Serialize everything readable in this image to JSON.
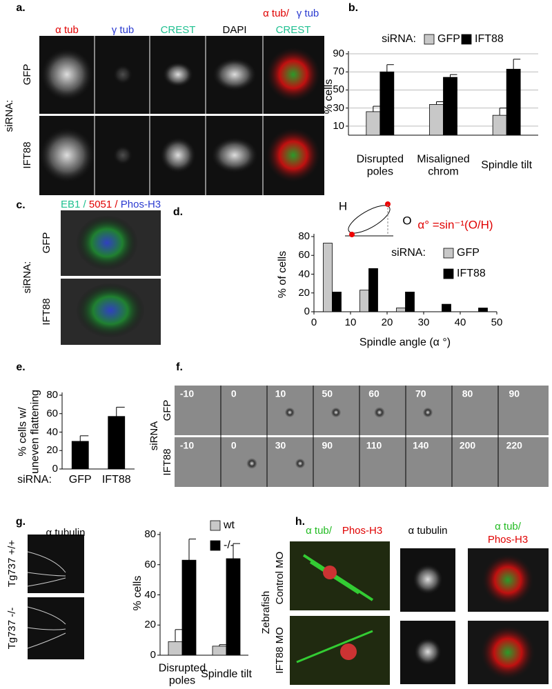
{
  "panel_labels": [
    "a.",
    "b.",
    "c.",
    "d.",
    "e.",
    "f.",
    "g.",
    "h."
  ],
  "panel_a": {
    "group": "siRNA:",
    "rows": [
      "GFP",
      "IFT88"
    ],
    "columns": [
      "α tub",
      "γ tub",
      "CREST",
      "DAPI"
    ],
    "merge": [
      "α tub/",
      "γ tub",
      "CREST"
    ]
  },
  "panel_c": {
    "header": [
      "EB1",
      "/",
      "5051",
      "/",
      "Phos-H3"
    ],
    "group": "siRNA:",
    "rows": [
      "GFP",
      "IFT88"
    ]
  },
  "panel_f": {
    "group": "siRNA",
    "rows": [
      "GFP",
      "IFT88"
    ],
    "times": [
      [
        "-10",
        "0",
        "10",
        "50",
        "60",
        "70",
        "80",
        "90"
      ],
      [
        "-10",
        "0",
        "30",
        "90",
        "110",
        "140",
        "200",
        "220"
      ]
    ]
  },
  "panel_g": {
    "header": "α tubulin",
    "rows": [
      "Tg737 +/+",
      "Tg737 -/-"
    ]
  },
  "panel_h": {
    "headers": [
      "α tub/",
      "Phos-H3",
      "α tubulin",
      "α tub/",
      "Phos-H3"
    ],
    "group": "Zebrafish",
    "rows": [
      "Control MO",
      "IFT88 MO"
    ]
  },
  "chart_data": [
    {
      "type": "bar",
      "legend_title": "siRNA:",
      "categories": [
        "Disrupted poles",
        "Misaligned chrom",
        "Spindle tilt"
      ],
      "series": [
        {
          "name": "GFP",
          "color": "#c8c8c8",
          "values": [
            26,
            34,
            22
          ],
          "errors": [
            6,
            3,
            8
          ]
        },
        {
          "name": "IFT88",
          "color": "#000000",
          "values": [
            70,
            64,
            73
          ],
          "errors": [
            8,
            3,
            11
          ]
        }
      ],
      "ylabel": "% cells",
      "ylim": [
        0,
        90
      ],
      "yticks": [
        10,
        30,
        50,
        70,
        90
      ],
      "grid": true
    },
    {
      "type": "bar",
      "legend_title": "siRNA:",
      "x": [
        5,
        15,
        25,
        35,
        45
      ],
      "series": [
        {
          "name": "GFP",
          "color": "#c8c8c8",
          "values": [
            73,
            23,
            4,
            0,
            0
          ]
        },
        {
          "name": "IFT88",
          "color": "#000000",
          "values": [
            21,
            46,
            21,
            8,
            4
          ]
        }
      ],
      "xlabel": "Spindle angle (α °)",
      "ylabel": "% of cells",
      "xlim": [
        0,
        50
      ],
      "xticks": [
        0,
        10,
        20,
        30,
        40,
        50
      ],
      "ylim": [
        0,
        80
      ],
      "yticks": [
        0,
        20,
        40,
        60,
        80
      ],
      "grid": false,
      "annotations": [
        "H",
        "O",
        "α° =sin⁻¹(O/H)"
      ]
    },
    {
      "type": "bar",
      "category_title": "siRNA:",
      "categories": [
        "GFP",
        "IFT88"
      ],
      "values": [
        30,
        57
      ],
      "errors": [
        6,
        10
      ],
      "color": "#000000",
      "ylabel": "% cells w/\nuneven flattening",
      "ylim": [
        0,
        80
      ],
      "yticks": [
        0,
        20,
        40,
        60,
        80
      ],
      "grid": false
    },
    {
      "type": "bar",
      "categories": [
        "Disrupted poles",
        "Spindle tilt"
      ],
      "series": [
        {
          "name": "wt",
          "color": "#c8c8c8",
          "values": [
            9,
            6
          ],
          "errors": [
            8,
            1
          ]
        },
        {
          "name": "-/-",
          "color": "#000000",
          "values": [
            63,
            64
          ],
          "errors": [
            14,
            10
          ]
        }
      ],
      "ylabel": "% cells",
      "ylim": [
        0,
        80
      ],
      "yticks": [
        0,
        20,
        40,
        60,
        80
      ],
      "grid": false
    }
  ]
}
